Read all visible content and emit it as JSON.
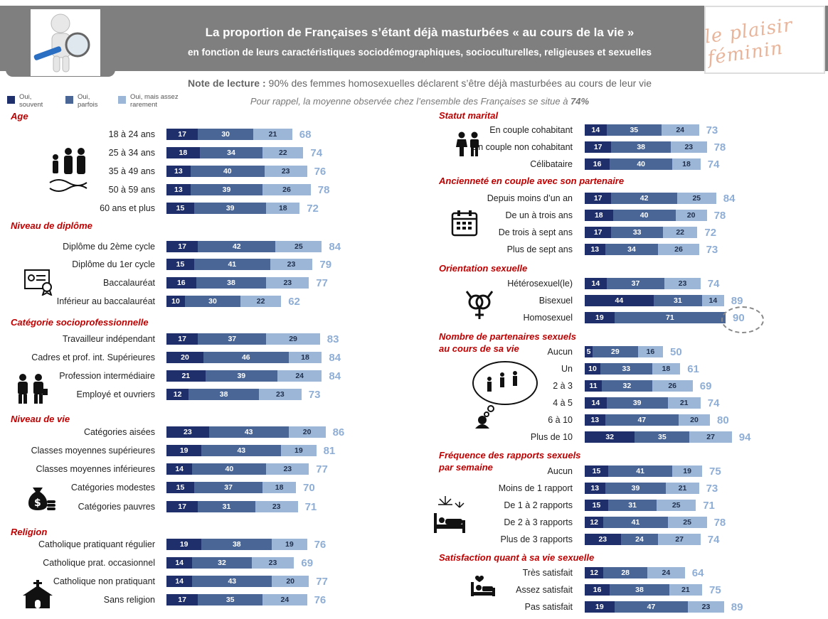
{
  "header": {
    "title": "La proportion de Françaises s’étant déjà masturbées « au cours de la vie »",
    "subtitle": "en fonction de leurs caractéristiques sociodémographiques, socioculturelles, religieuses et sexuelles",
    "brand": "le plaisir féminin",
    "note_label": "Note de lecture :",
    "note_text": " 90% des femmes homosexuelles déclarent s’être déjà masturbées au cours de leur vie",
    "recall_text": "Pour rappel, la moyenne observée chez l’ensemble des Françaises se situe à ",
    "recall_value": "74%"
  },
  "legend": [
    {
      "label": "Oui, souvent",
      "color": "#1f2f6b"
    },
    {
      "label": "Oui, parfois",
      "color": "#4a6696"
    },
    {
      "label": "Oui, mais assez rarement",
      "color": "#9cb6d8"
    }
  ],
  "colors": {
    "souvent": "#1f2f6b",
    "parfois": "#4a6696",
    "rarement": "#9cb6d8",
    "total": "#8faed6",
    "section": "#c00000"
  },
  "chart_data": {
    "type": "bar",
    "stacked": true,
    "series_names": [
      "Oui, souvent",
      "Oui, parfois",
      "Oui, mais assez rarement"
    ],
    "groups": [
      {
        "title": "Age",
        "column": "left",
        "rows": [
          {
            "label": "18 à 24 ans",
            "values": [
              17,
              30,
              21
            ],
            "total": 68
          },
          {
            "label": "25 à 34 ans",
            "values": [
              18,
              34,
              22
            ],
            "total": 74
          },
          {
            "label": "35 à 49 ans",
            "values": [
              13,
              40,
              23
            ],
            "total": 76
          },
          {
            "label": "50 à 59 ans",
            "values": [
              13,
              39,
              26
            ],
            "total": 78
          },
          {
            "label": "60 ans et plus",
            "values": [
              15,
              39,
              18
            ],
            "total": 72
          }
        ]
      },
      {
        "title": "Niveau de diplôme",
        "column": "left",
        "rows": [
          {
            "label": "Diplôme du 2ème cycle",
            "values": [
              17,
              42,
              25
            ],
            "total": 84
          },
          {
            "label": "Diplôme du 1er cycle",
            "values": [
              15,
              41,
              23
            ],
            "total": 79
          },
          {
            "label": "Baccalauréat",
            "values": [
              16,
              38,
              23
            ],
            "total": 77
          },
          {
            "label": "Inférieur au baccalauréat",
            "values": [
              10,
              30,
              22
            ],
            "total": 62
          }
        ]
      },
      {
        "title": "Catégorie socioprofessionnelle",
        "column": "left",
        "rows": [
          {
            "label": "Travailleur indépendant",
            "values": [
              17,
              37,
              29
            ],
            "total": 83
          },
          {
            "label": "Cadres et prof. int. Supérieures",
            "values": [
              20,
              46,
              18
            ],
            "total": 84
          },
          {
            "label": "Profession intermédiaire",
            "values": [
              21,
              39,
              24
            ],
            "total": 84
          },
          {
            "label": "Employé et ouvriers",
            "values": [
              12,
              38,
              23
            ],
            "total": 73
          }
        ]
      },
      {
        "title": "Niveau de vie",
        "column": "left",
        "rows": [
          {
            "label": "Catégories aisées",
            "values": [
              23,
              43,
              20
            ],
            "total": 86
          },
          {
            "label": "Classes moyennes supérieures",
            "values": [
              19,
              43,
              19
            ],
            "total": 81
          },
          {
            "label": "Classes moyennes inférieures",
            "values": [
              14,
              40,
              23
            ],
            "total": 77
          },
          {
            "label": "Catégories modestes",
            "values": [
              15,
              37,
              18
            ],
            "total": 70
          },
          {
            "label": "Catégories pauvres",
            "values": [
              17,
              31,
              23
            ],
            "total": 71
          }
        ]
      },
      {
        "title": "Religion",
        "column": "left",
        "rows": [
          {
            "label": "Catholique pratiquant régulier",
            "values": [
              19,
              38,
              19
            ],
            "total": 76
          },
          {
            "label": "Catholique prat. occasionnel",
            "values": [
              14,
              32,
              23
            ],
            "total": 69
          },
          {
            "label": "Catholique non pratiquant",
            "values": [
              14,
              43,
              20
            ],
            "total": 77
          },
          {
            "label": "Sans religion",
            "values": [
              17,
              35,
              24
            ],
            "total": 76
          }
        ]
      },
      {
        "title": "Statut marital",
        "column": "right",
        "rows": [
          {
            "label": "En couple cohabitant",
            "values": [
              14,
              35,
              24
            ],
            "total": 73
          },
          {
            "label": "En couple non cohabitant",
            "values": [
              17,
              38,
              23
            ],
            "total": 78
          },
          {
            "label": "Célibataire",
            "values": [
              16,
              40,
              18
            ],
            "total": 74
          }
        ]
      },
      {
        "title": "Ancienneté en couple avec son partenaire",
        "column": "right",
        "rows": [
          {
            "label": "Depuis moins d’un an",
            "values": [
              17,
              42,
              25
            ],
            "total": 84
          },
          {
            "label": "De un à trois ans",
            "values": [
              18,
              40,
              20
            ],
            "total": 78
          },
          {
            "label": "De trois à sept ans",
            "values": [
              17,
              33,
              22
            ],
            "total": 72
          },
          {
            "label": "Plus de sept ans",
            "values": [
              13,
              34,
              26
            ],
            "total": 73
          }
        ]
      },
      {
        "title": "Orientation sexuelle",
        "column": "right",
        "rows": [
          {
            "label": "Hétérosexuel(le)",
            "values": [
              14,
              37,
              23
            ],
            "total": 74
          },
          {
            "label": "Bisexuel",
            "values": [
              44,
              31,
              14
            ],
            "total": 89
          },
          {
            "label": "Homosexuel",
            "values": [
              19,
              71,
              0
            ],
            "total": 90
          }
        ]
      },
      {
        "title": "Nombre de partenaires sexuels au cours de sa vie",
        "column": "right",
        "rows": [
          {
            "label": "Aucun",
            "values": [
              5,
              29,
              16
            ],
            "total": 50
          },
          {
            "label": "Un",
            "values": [
              10,
              33,
              18
            ],
            "total": 61
          },
          {
            "label": "2 à 3",
            "values": [
              11,
              32,
              26
            ],
            "total": 69
          },
          {
            "label": "4 à 5",
            "values": [
              14,
              39,
              21
            ],
            "total": 74
          },
          {
            "label": "6 à 10",
            "values": [
              13,
              47,
              20
            ],
            "total": 80
          },
          {
            "label": "Plus de 10",
            "values": [
              32,
              35,
              27
            ],
            "total": 94
          }
        ]
      },
      {
        "title": "Fréquence des rapports sexuels par semaine",
        "column": "right",
        "rows": [
          {
            "label": "Aucun",
            "values": [
              15,
              41,
              19
            ],
            "total": 75
          },
          {
            "label": "Moins de 1 rapport",
            "values": [
              13,
              39,
              21
            ],
            "total": 73
          },
          {
            "label": "De 1 à 2 rapports",
            "values": [
              15,
              31,
              25
            ],
            "total": 71
          },
          {
            "label": "De 2 à 3 rapports",
            "values": [
              12,
              41,
              25
            ],
            "total": 78
          },
          {
            "label": "Plus de 3 rapports",
            "values": [
              23,
              24,
              27
            ],
            "total": 74
          }
        ]
      },
      {
        "title": "Satisfaction quant à sa vie sexuelle",
        "column": "right",
        "rows": [
          {
            "label": "Très satisfait",
            "values": [
              12,
              28,
              24
            ],
            "total": 64
          },
          {
            "label": "Assez satisfait",
            "values": [
              16,
              38,
              21
            ],
            "total": 75
          },
          {
            "label": "Pas satisfait",
            "values": [
              19,
              47,
              23
            ],
            "total": 89
          }
        ]
      }
    ]
  }
}
